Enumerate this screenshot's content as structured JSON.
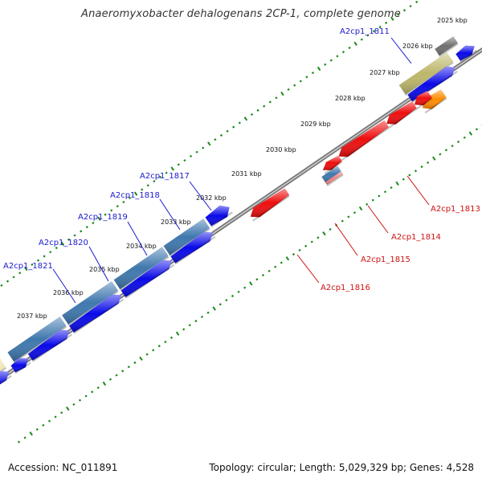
{
  "title": "Anaeromyxobacter dehalogenans 2CP-1, complete genome",
  "footer": {
    "accession": "Accession: NC_011891",
    "summary": "Topology: circular; Length: 5,029,329 bp; Genes: 4,528"
  },
  "colors": {
    "backbone": "#8a8a8a",
    "tick": "#1a8a1a",
    "label_blue": "#1a1ad0",
    "label_red": "#d01010",
    "cds_blue": "#0a0ae8",
    "cds_red": "#ee0f0f",
    "cds_steel": "#3f78ad",
    "cds_khaki": "#bdb76b",
    "cds_gray": "#707070",
    "cds_orange": "#ff8c00",
    "cds_green": "#2ec82e",
    "cds_beige": "#e8e0a8"
  },
  "scale_labels": [
    "2025 kbp",
    "2026 kbp",
    "2027 kbp",
    "2028 kbp",
    "2029 kbp",
    "2030 kbp",
    "2031 kbp",
    "2032 kbp",
    "2033 kbp",
    "2034 kbp",
    "2035 kbp",
    "2036 kbp",
    "2037 kbp"
  ],
  "gene_labels_top": [
    "A2cp1_1811",
    "A2cp1_1817",
    "A2cp1_1818",
    "A2cp1_1819",
    "A2cp1_1820",
    "A2cp1_1821"
  ],
  "gene_labels_bottom": [
    "A2cp1_1813",
    "A2cp1_1814",
    "A2cp1_1815",
    "A2cp1_1816"
  ]
}
